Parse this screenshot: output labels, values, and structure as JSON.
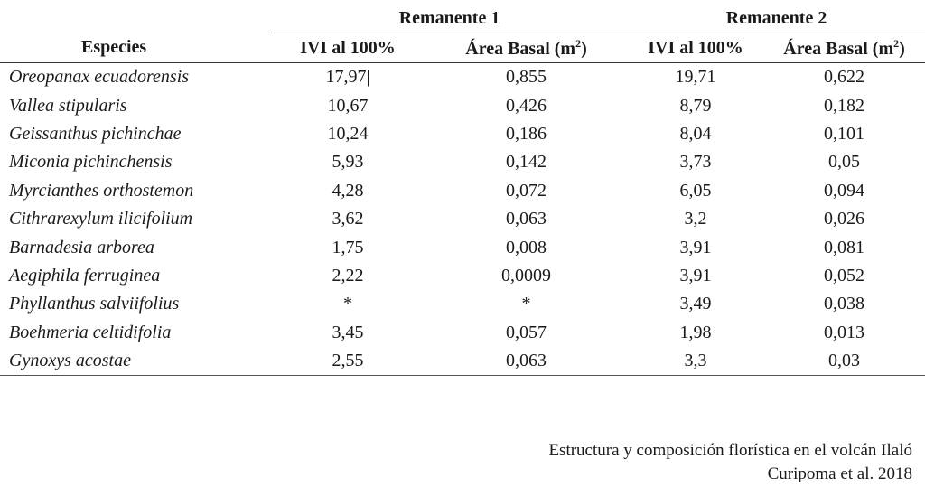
{
  "table": {
    "group_headers": [
      "Remanente 1",
      "Remanente 2"
    ],
    "column_headers": {
      "species": "Especies",
      "ivi": "IVI al 100%",
      "area_basal": "Área Basal (m",
      "area_basal_sup": "2",
      "area_basal_close": ")"
    },
    "rows": [
      {
        "species": "Oreopanax ecuadorensis",
        "ivi1": "17,97|",
        "ab1": "0,855",
        "ivi2": "19,71",
        "ab2": "0,622"
      },
      {
        "species": "Vallea stipularis",
        "ivi1": "10,67",
        "ab1": "0,426",
        "ivi2": "8,79",
        "ab2": "0,182"
      },
      {
        "species": "Geissanthus pichinchae",
        "ivi1": "10,24",
        "ab1": "0,186",
        "ivi2": "8,04",
        "ab2": "0,101"
      },
      {
        "species": "Miconia pichinchensis",
        "ivi1": "5,93",
        "ab1": "0,142",
        "ivi2": "3,73",
        "ab2": "0,05"
      },
      {
        "species": "Myrcianthes orthostemon",
        "ivi1": "4,28",
        "ab1": "0,072",
        "ivi2": "6,05",
        "ab2": "0,094"
      },
      {
        "species": "Cithrarexylum ilicifolium",
        "ivi1": "3,62",
        "ab1": "0,063",
        "ivi2": "3,2",
        "ab2": "0,026"
      },
      {
        "species": "Barnadesia arborea",
        "ivi1": "1,75",
        "ab1": "0,008",
        "ivi2": "3,91",
        "ab2": "0,081"
      },
      {
        "species": "Aegiphila ferruginea",
        "ivi1": "2,22",
        "ab1": "0,0009",
        "ivi2": "3,91",
        "ab2": "0,052"
      },
      {
        "species": "Phyllanthus salviifolius",
        "ivi1": "*",
        "ab1": "*",
        "ivi2": "3,49",
        "ab2": "0,038"
      },
      {
        "species": "Boehmeria celtidifolia",
        "ivi1": "3,45",
        "ab1": "0,057",
        "ivi2": "1,98",
        "ab2": "0,013"
      },
      {
        "species": "Gynoxys acostae",
        "ivi1": "2,55",
        "ab1": "0,063",
        "ivi2": "3,3",
        "ab2": "0,03"
      }
    ]
  },
  "source": {
    "line1": "Estructura y composición florística en el volcán Ilaló",
    "line2": "Curipoma et al. 2018"
  }
}
